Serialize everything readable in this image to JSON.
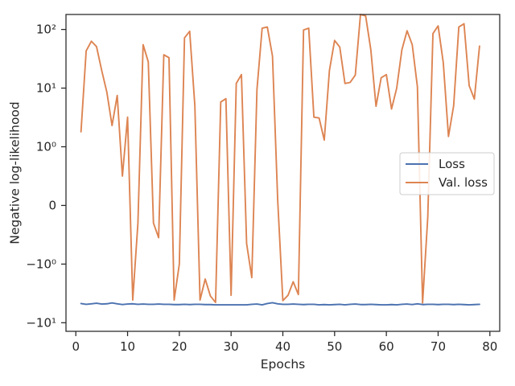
{
  "chart_data": {
    "type": "line",
    "title": "",
    "xlabel": "Epochs",
    "ylabel": "Negative log-likelihood",
    "yscale": "symlog",
    "xlim": [
      -1.9,
      81.9
    ],
    "ylim": [
      -14,
      180
    ],
    "grid": false,
    "legend_position": "center-right",
    "x_ticks": [
      0,
      10,
      20,
      30,
      40,
      50,
      60,
      70,
      80
    ],
    "y_ticks": [
      {
        "value": -10,
        "label": "−10¹"
      },
      {
        "value": -1,
        "label": "−10⁰"
      },
      {
        "value": 0,
        "label": "0"
      },
      {
        "value": 1,
        "label": "10⁰"
      },
      {
        "value": 10,
        "label": "10¹"
      },
      {
        "value": 100,
        "label": "10²"
      }
    ],
    "series": [
      {
        "name": "Loss",
        "color": "#4c72b0",
        "x": [
          1,
          2,
          3,
          4,
          5,
          6,
          7,
          8,
          9,
          10,
          11,
          12,
          13,
          14,
          15,
          16,
          17,
          18,
          19,
          20,
          21,
          22,
          23,
          24,
          25,
          26,
          27,
          28,
          29,
          30,
          31,
          32,
          33,
          34,
          35,
          36,
          37,
          38,
          39,
          40,
          41,
          42,
          43,
          44,
          45,
          46,
          47,
          48,
          49,
          50,
          51,
          52,
          53,
          54,
          55,
          56,
          57,
          58,
          59,
          60,
          61,
          62,
          63,
          64,
          65,
          66,
          67,
          68,
          69,
          70,
          71,
          72,
          73,
          74,
          75,
          76,
          77,
          78
        ],
        "values": [
          -4.7,
          -4.85,
          -4.75,
          -4.65,
          -4.8,
          -4.75,
          -4.6,
          -4.75,
          -4.9,
          -4.8,
          -4.75,
          -4.85,
          -4.8,
          -4.85,
          -4.85,
          -4.8,
          -4.85,
          -4.85,
          -4.9,
          -4.9,
          -4.85,
          -4.9,
          -4.85,
          -4.85,
          -4.9,
          -4.9,
          -4.95,
          -4.95,
          -4.95,
          -4.95,
          -4.95,
          -4.95,
          -4.95,
          -4.85,
          -4.8,
          -4.95,
          -4.7,
          -4.55,
          -4.75,
          -4.85,
          -4.85,
          -4.8,
          -4.85,
          -4.9,
          -4.85,
          -4.85,
          -4.95,
          -4.9,
          -4.95,
          -4.9,
          -4.85,
          -4.95,
          -4.85,
          -4.8,
          -4.9,
          -4.9,
          -4.85,
          -4.9,
          -4.95,
          -4.95,
          -4.9,
          -4.95,
          -4.85,
          -4.8,
          -4.9,
          -4.75,
          -4.9,
          -4.85,
          -4.85,
          -4.9,
          -4.85,
          -4.85,
          -4.9,
          -4.85,
          -4.9,
          -4.95,
          -4.9,
          -4.85
        ]
      },
      {
        "name": "Val. loss",
        "color": "#dd8452",
        "x": [
          1,
          2,
          3,
          4,
          5,
          6,
          7,
          8,
          9,
          10,
          11,
          12,
          13,
          14,
          15,
          16,
          17,
          18,
          19,
          20,
          21,
          22,
          23,
          24,
          25,
          26,
          27,
          28,
          29,
          30,
          31,
          32,
          33,
          34,
          35,
          36,
          37,
          38,
          39,
          40,
          41,
          42,
          43,
          44,
          45,
          46,
          47,
          48,
          49,
          50,
          51,
          52,
          53,
          54,
          55,
          56,
          57,
          58,
          59,
          60,
          61,
          62,
          63,
          64,
          65,
          66,
          67,
          68,
          69,
          70,
          71,
          72,
          73,
          74,
          75,
          76,
          77,
          78
        ],
        "values": [
          1.8,
          43,
          63,
          51,
          20,
          8.5,
          2.3,
          7.5,
          0.5,
          3.2,
          -4.1,
          -0.3,
          55,
          28,
          -0.3,
          -0.55,
          37,
          33,
          -4.1,
          -1,
          72,
          93,
          5,
          -4.1,
          -1.8,
          -3.5,
          -4.5,
          5.8,
          6.6,
          -3.4,
          12,
          17,
          -0.65,
          -1.7,
          9.5,
          105,
          110,
          35,
          0.1,
          -4.2,
          -3.4,
          -2,
          -3.3,
          98,
          105,
          3.2,
          3.1,
          1.3,
          20,
          65,
          50,
          12,
          12.5,
          16.7,
          180,
          170,
          45,
          4.9,
          15,
          17,
          4.4,
          10,
          45,
          95,
          55,
          10.5,
          -4.6,
          -0.2,
          85,
          115,
          27,
          1.5,
          5,
          110,
          125,
          11,
          6.5,
          52
        ]
      }
    ]
  }
}
